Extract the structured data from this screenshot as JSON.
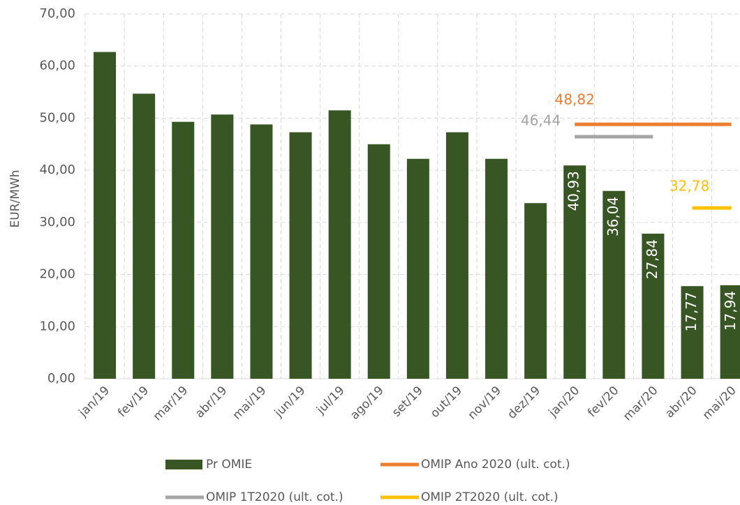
{
  "chart_data": {
    "type": "bar",
    "y_label": "EUR/MWh",
    "categories": [
      "jan/19",
      "fev/19",
      "mar/19",
      "abr/19",
      "mai/19",
      "jun/19",
      "jul/19",
      "ago/19",
      "set/19",
      "out/19",
      "nov/19",
      "dez/19",
      "jan/20",
      "fev/20",
      "mar/20",
      "abr/20",
      "mai/20"
    ],
    "ylim": [
      0,
      70
    ],
    "yticks": [
      {
        "value": 0,
        "label": "0,00"
      },
      {
        "value": 10,
        "label": "10,00"
      },
      {
        "value": 20,
        "label": "20,00"
      },
      {
        "value": 30,
        "label": "30,00"
      },
      {
        "value": 40,
        "label": "40,00"
      },
      {
        "value": 50,
        "label": "50,00"
      },
      {
        "value": 60,
        "label": "60,00"
      },
      {
        "value": 70,
        "label": "70,00"
      }
    ],
    "grid": true,
    "series": [
      {
        "name": "Pr OMIE",
        "type": "bar",
        "color": "#375623",
        "values": [
          62.7,
          54.7,
          49.3,
          50.7,
          48.8,
          47.3,
          51.5,
          45.0,
          42.2,
          47.3,
          42.2,
          33.7,
          40.93,
          36.04,
          27.84,
          17.77,
          17.94
        ],
        "value_labels": [
          null,
          null,
          null,
          null,
          null,
          null,
          null,
          null,
          null,
          null,
          null,
          null,
          "40,93",
          "36,04",
          "27,84",
          "17,77",
          "17,94"
        ]
      },
      {
        "name": "OMIP Ano 2020 (ult. cot.)",
        "type": "line",
        "color": "#ed7d31",
        "values": [
          null,
          null,
          null,
          null,
          null,
          null,
          null,
          null,
          null,
          null,
          null,
          null,
          48.82,
          48.82,
          48.82,
          48.82,
          48.82
        ],
        "value_labels": [
          null,
          null,
          null,
          null,
          null,
          null,
          null,
          null,
          null,
          null,
          null,
          null,
          "48,82",
          null,
          null,
          null,
          null
        ]
      },
      {
        "name": "OMIP 1T2020 (ult. cot.)",
        "type": "line",
        "color": "#a5a5a5",
        "values": [
          null,
          null,
          null,
          null,
          null,
          null,
          null,
          null,
          null,
          null,
          null,
          null,
          46.44,
          46.44,
          46.44,
          null,
          null
        ],
        "value_labels": [
          null,
          null,
          null,
          null,
          null,
          null,
          null,
          null,
          null,
          null,
          null,
          null,
          "46,44",
          null,
          null,
          null,
          null
        ]
      },
      {
        "name": "OMIP 2T2020 (ult. cot.)",
        "type": "line",
        "color": "#ffc000",
        "values": [
          null,
          null,
          null,
          null,
          null,
          null,
          null,
          null,
          null,
          null,
          null,
          null,
          null,
          null,
          null,
          32.78,
          32.78
        ],
        "value_labels": [
          null,
          null,
          null,
          null,
          null,
          null,
          null,
          null,
          null,
          null,
          null,
          null,
          null,
          null,
          null,
          "32,78",
          null
        ]
      }
    ]
  }
}
